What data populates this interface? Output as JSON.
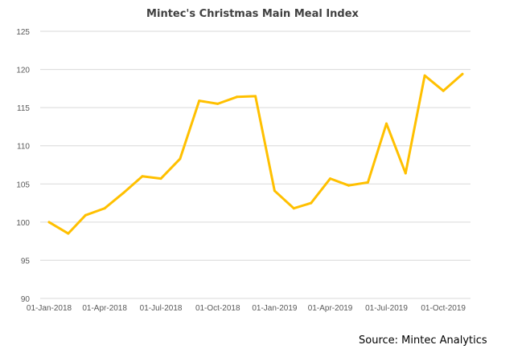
{
  "source_note": "Source: Mintec Analytics",
  "colors": {
    "series": "#FFC000",
    "grid": "#D9D9D9",
    "text": "#595959",
    "title": "#404040"
  },
  "chart_data": {
    "type": "line",
    "title": "Mintec's Christmas Main Meal Index",
    "xlabel": "",
    "ylabel": "",
    "ylim": [
      90,
      125
    ],
    "yticks": [
      90,
      95,
      100,
      105,
      110,
      115,
      120,
      125
    ],
    "grid": true,
    "legend": "none",
    "x_tick_labels": [
      "01-Jan-2018",
      "01-Apr-2018",
      "01-Jul-2018",
      "01-Oct-2018",
      "01-Jan-2019",
      "01-Apr-2019",
      "01-Jul-2019",
      "01-Oct-2019"
    ],
    "x": [
      "2018-01-01",
      "2018-02-01",
      "2018-03-01",
      "2018-04-01",
      "2018-05-01",
      "2018-06-01",
      "2018-07-01",
      "2018-08-01",
      "2018-09-01",
      "2018-10-01",
      "2018-11-01",
      "2018-12-01",
      "2019-01-01",
      "2019-02-01",
      "2019-03-01",
      "2019-04-01",
      "2019-05-01",
      "2019-06-01",
      "2019-07-01",
      "2019-08-01",
      "2019-09-01",
      "2019-10-01",
      "2019-11-01"
    ],
    "series": [
      {
        "values": [
          100.0,
          98.5,
          100.9,
          101.8,
          103.8,
          106.0,
          105.7,
          108.3,
          115.9,
          115.5,
          116.4,
          116.5,
          104.1,
          101.8,
          102.5,
          105.7,
          104.8,
          105.2,
          112.9,
          106.4,
          119.2,
          117.2,
          119.4
        ]
      }
    ]
  }
}
